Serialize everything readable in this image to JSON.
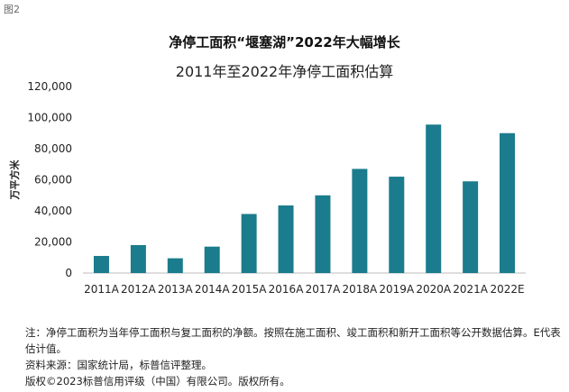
{
  "figure_label": "图2",
  "colors": {
    "bar": "#1a7c8c",
    "axis": "#bbbbbb",
    "text": "#222222"
  },
  "chart_data": {
    "type": "bar",
    "title": "净停工面积“堰塞湖”2022年大幅增长",
    "subtitle": "2011年至2022年净停工面积估算",
    "xlabel": "",
    "ylabel": "万平方米",
    "categories": [
      "2011A",
      "2012A",
      "2013A",
      "2014A",
      "2015A",
      "2016A",
      "2017A",
      "2018A",
      "2019A",
      "2020A",
      "2021A",
      "2022E"
    ],
    "values": [
      11000,
      18000,
      9500,
      17000,
      38000,
      43500,
      50000,
      67000,
      62000,
      95500,
      59000,
      90000
    ],
    "ylim": [
      0,
      120000
    ],
    "yticks": [
      0,
      20000,
      40000,
      60000,
      80000,
      100000,
      120000
    ],
    "ytick_labels": [
      "0",
      "20,000",
      "40,000",
      "60,000",
      "80,000",
      "100,000",
      "120,000"
    ],
    "grid": false,
    "legend": "none"
  },
  "notes": {
    "note": "注：净停工面积为当年停工面积与复工面积的净额。按照在施工面积、竣工面积和新开工面积等公开数据估算。E代表估计值。",
    "source": "资料来源：国家统计局，标普信评整理。",
    "copyright": "版权©2023标普信用评级（中国）有限公司。版权所有。"
  }
}
